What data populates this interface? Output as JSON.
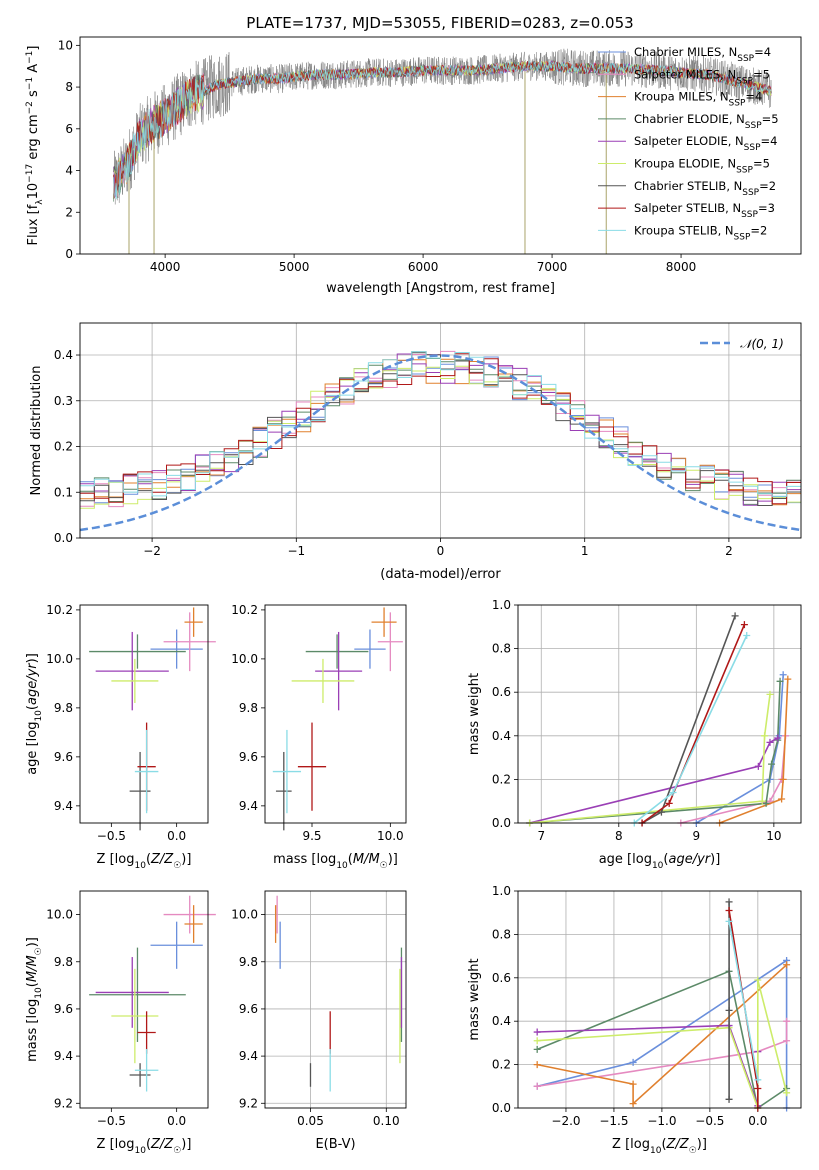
{
  "figure_title": "PLATE=1737, MJD=53055, FIBERID=0283, z=0.053",
  "colors": {
    "Chabrier MILES": "#6a8fdc",
    "Salpeter MILES": "#e58ac0",
    "Kroupa MILES": "#e0802e",
    "Chabrier ELODIE": "#5c8a68",
    "Salpeter ELODIE": "#9a3fb5",
    "Kroupa ELODIE": "#cdec6a",
    "Chabrier STELIB": "#555555",
    "Salpeter STELIB": "#b01818",
    "Kroupa STELIB": "#8adce6",
    "Observed": "#808080",
    "Normal": "#5b8ed8"
  },
  "chart_data": [
    {
      "type": "line",
      "title": "PLATE=1737, MJD=53055, FIBERID=0283, z=0.053",
      "xlabel": "wavelength [Angstrom, rest frame]",
      "ylabel": "Flux [fλ10⁻¹⁷ erg cm⁻² s⁻¹ A⁻¹]",
      "xlim": [
        3340,
        8930
      ],
      "ylim": [
        0,
        10.4
      ],
      "xticks": [
        4000,
        5000,
        6000,
        7000,
        8000
      ],
      "yticks": [
        0,
        2,
        4,
        6,
        8,
        10
      ],
      "legend_position": "top-right",
      "continuum": {
        "x": [
          3600,
          3700,
          3800,
          3900,
          4000,
          4100,
          4200,
          4300,
          4400,
          4500,
          4600,
          4700,
          4800,
          4900,
          5000,
          5200,
          5400,
          5600,
          5800,
          6000,
          6200,
          6400,
          6600,
          6800,
          7000,
          7200,
          7400,
          7600,
          7800,
          8000,
          8200,
          8400,
          8600,
          8700
        ],
        "y": [
          3.3,
          4.2,
          5.6,
          6.2,
          6.6,
          7.1,
          7.6,
          7.8,
          8.1,
          8.2,
          8.3,
          8.4,
          8.4,
          8.4,
          8.5,
          8.6,
          8.6,
          8.7,
          8.7,
          8.8,
          8.8,
          8.8,
          8.9,
          9.0,
          9.0,
          8.9,
          8.9,
          8.9,
          8.8,
          8.7,
          8.6,
          8.3,
          8.0,
          7.8
        ]
      },
      "spikes": [
        {
          "x": 3720,
          "y": 0.0
        },
        {
          "x": 3914,
          "y": 0.0
        },
        {
          "x": 6790,
          "y": 0.0
        },
        {
          "x": 7420,
          "y": 0.0
        }
      ],
      "series": [
        {
          "name": "Chabrier MILES, N_SSP=4"
        },
        {
          "name": "Salpeter MILES, N_SSP=5"
        },
        {
          "name": "Kroupa MILES, N_SSP=4"
        },
        {
          "name": "Chabrier ELODIE, N_SSP=5"
        },
        {
          "name": "Salpeter ELODIE, N_SSP=4"
        },
        {
          "name": "Kroupa ELODIE, N_SSP=5"
        },
        {
          "name": "Chabrier STELIB, N_SSP=2"
        },
        {
          "name": "Salpeter STELIB, N_SSP=3"
        },
        {
          "name": "Kroupa STELIB, N_SSP=2"
        }
      ]
    },
    {
      "type": "histogram",
      "xlabel": "(data-model)/error",
      "ylabel": "Normed distribution",
      "xlim": [
        -2.5,
        2.5
      ],
      "ylim": [
        0,
        0.47
      ],
      "xticks": [
        -2,
        -1,
        0,
        1,
        2
      ],
      "yticks": [
        0.0,
        0.1,
        0.2,
        0.3,
        0.4
      ],
      "grid": true,
      "legend": "𝒩(0, 1)",
      "legend_position": "top-right",
      "bin_width": 0.1,
      "bin_start": -2.5,
      "bins": 50
    },
    {
      "type": "scatter",
      "xlabel": "Z [log10(Z/Z☉)]",
      "ylabel": "age  [log10(age/yr)]",
      "xlim": [
        -0.74,
        0.24
      ],
      "ylim": [
        9.33,
        10.22
      ],
      "xticks": [
        -0.5,
        0.0
      ],
      "yticks": [
        9.4,
        9.6,
        9.8,
        10.0,
        10.2
      ],
      "points": [
        {
          "model": "Chabrier MILES",
          "x": 0.0,
          "y": 10.04,
          "xerr": 0.2,
          "yerr": 0.08
        },
        {
          "model": "Salpeter MILES",
          "x": 0.1,
          "y": 10.07,
          "xerr": 0.2,
          "yerr": 0.12
        },
        {
          "model": "Kroupa MILES",
          "x": 0.13,
          "y": 10.15,
          "xerr": 0.07,
          "yerr": 0.06
        },
        {
          "model": "Chabrier ELODIE",
          "x": -0.3,
          "y": 10.03,
          "xerr": 0.37,
          "yerr": 0.07
        },
        {
          "model": "Salpeter ELODIE",
          "x": -0.34,
          "y": 9.95,
          "xerr": 0.28,
          "yerr": 0.16
        },
        {
          "model": "Kroupa ELODIE",
          "x": -0.32,
          "y": 9.91,
          "xerr": 0.18,
          "yerr": 0.09
        },
        {
          "model": "Chabrier STELIB",
          "x": -0.28,
          "y": 9.46,
          "xerr": 0.08,
          "yerr": 0.16
        },
        {
          "model": "Salpeter STELIB",
          "x": -0.23,
          "y": 9.56,
          "xerr": 0.07,
          "yerr": 0.18
        },
        {
          "model": "Kroupa STELIB",
          "x": -0.23,
          "y": 9.54,
          "xerr": 0.09,
          "yerr": 0.17
        }
      ]
    },
    {
      "type": "scatter",
      "xlabel": "mass [log10(M/M☉)]",
      "ylabel": "",
      "xlim": [
        9.2,
        10.1
      ],
      "ylim": [
        9.33,
        10.22
      ],
      "xticks": [
        9.5,
        10.0
      ],
      "yticks": [
        9.4,
        9.6,
        9.8,
        10.0,
        10.2
      ],
      "points": [
        {
          "model": "Chabrier MILES",
          "x": 9.87,
          "y": 10.04,
          "xerr": 0.1,
          "yerr": 0.08
        },
        {
          "model": "Salpeter MILES",
          "x": 10.0,
          "y": 10.07,
          "xerr": 0.08,
          "yerr": 0.12
        },
        {
          "model": "Kroupa MILES",
          "x": 9.96,
          "y": 10.15,
          "xerr": 0.08,
          "yerr": 0.06
        },
        {
          "model": "Chabrier ELODIE",
          "x": 9.66,
          "y": 10.03,
          "xerr": 0.2,
          "yerr": 0.07
        },
        {
          "model": "Salpeter ELODIE",
          "x": 9.67,
          "y": 9.95,
          "xerr": 0.15,
          "yerr": 0.16
        },
        {
          "model": "Kroupa ELODIE",
          "x": 9.57,
          "y": 9.91,
          "xerr": 0.2,
          "yerr": 0.09
        },
        {
          "model": "Chabrier STELIB",
          "x": 9.32,
          "y": 9.46,
          "xerr": 0.05,
          "yerr": 0.16
        },
        {
          "model": "Salpeter STELIB",
          "x": 9.5,
          "y": 9.56,
          "xerr": 0.09,
          "yerr": 0.18
        },
        {
          "model": "Kroupa STELIB",
          "x": 9.34,
          "y": 9.54,
          "xerr": 0.09,
          "yerr": 0.17
        }
      ]
    },
    {
      "type": "line",
      "xlabel": "age  [log10(age/yr)]",
      "ylabel": "mass weight",
      "xlim": [
        6.7,
        10.35
      ],
      "ylim": [
        0,
        1.0
      ],
      "xticks": [
        7,
        8,
        9,
        10
      ],
      "yticks": [
        0.0,
        0.2,
        0.4,
        0.6,
        0.8,
        1.0
      ],
      "grid": true,
      "series": [
        {
          "model": "Chabrier MILES",
          "x": [
            9.0,
            9.95,
            10.07,
            10.12
          ],
          "y": [
            0.0,
            0.2,
            0.4,
            0.68
          ]
        },
        {
          "model": "Salpeter MILES",
          "x": [
            8.8,
            9.95,
            10.1,
            10.15
          ],
          "y": [
            0.0,
            0.1,
            0.2,
            0.4
          ]
        },
        {
          "model": "Kroupa MILES",
          "x": [
            9.3,
            10.1,
            10.12,
            10.18
          ],
          "y": [
            0.0,
            0.11,
            0.2,
            0.66
          ]
        },
        {
          "model": "Chabrier ELODIE",
          "x": [
            6.85,
            9.9,
            9.97,
            10.05,
            10.08
          ],
          "y": [
            0.0,
            0.09,
            0.27,
            0.38,
            0.65
          ]
        },
        {
          "model": "Salpeter ELODIE",
          "x": [
            6.85,
            9.8,
            9.95,
            10.05
          ],
          "y": [
            0.0,
            0.26,
            0.37,
            0.39
          ]
        },
        {
          "model": "Kroupa ELODIE",
          "x": [
            6.85,
            9.85,
            9.88,
            9.95
          ],
          "y": [
            0.0,
            0.1,
            0.4,
            0.59
          ]
        },
        {
          "model": "Chabrier STELIB",
          "x": [
            8.3,
            8.55,
            9.5
          ],
          "y": [
            0.0,
            0.05,
            0.95
          ]
        },
        {
          "model": "Salpeter STELIB",
          "x": [
            8.3,
            8.65,
            9.62
          ],
          "y": [
            0.0,
            0.09,
            0.91
          ]
        },
        {
          "model": "Kroupa STELIB",
          "x": [
            8.2,
            8.7,
            9.65
          ],
          "y": [
            0.0,
            0.14,
            0.86
          ]
        }
      ]
    },
    {
      "type": "scatter",
      "xlabel": "Z [log10(Z/Z☉)]",
      "ylabel": "mass [log10(M/M☉)]",
      "xlim": [
        -0.74,
        0.24
      ],
      "ylim": [
        9.18,
        10.1
      ],
      "xticks": [
        -0.5,
        0.0
      ],
      "yticks": [
        9.2,
        9.4,
        9.6,
        9.8,
        10.0
      ],
      "points": [
        {
          "model": "Chabrier MILES",
          "x": 0.0,
          "y": 9.87,
          "xerr": 0.2,
          "yerr": 0.1
        },
        {
          "model": "Salpeter MILES",
          "x": 0.1,
          "y": 10.0,
          "xerr": 0.2,
          "yerr": 0.08
        },
        {
          "model": "Kroupa MILES",
          "x": 0.13,
          "y": 9.96,
          "xerr": 0.07,
          "yerr": 0.08
        },
        {
          "model": "Chabrier ELODIE",
          "x": -0.3,
          "y": 9.66,
          "xerr": 0.37,
          "yerr": 0.2
        },
        {
          "model": "Salpeter ELODIE",
          "x": -0.34,
          "y": 9.67,
          "xerr": 0.28,
          "yerr": 0.15
        },
        {
          "model": "Kroupa ELODIE",
          "x": -0.32,
          "y": 9.57,
          "xerr": 0.18,
          "yerr": 0.2
        },
        {
          "model": "Chabrier STELIB",
          "x": -0.28,
          "y": 9.32,
          "xerr": 0.08,
          "yerr": 0.05
        },
        {
          "model": "Salpeter STELIB",
          "x": -0.23,
          "y": 9.5,
          "xerr": 0.07,
          "yerr": 0.09
        },
        {
          "model": "Kroupa STELIB",
          "x": -0.23,
          "y": 9.34,
          "xerr": 0.09,
          "yerr": 0.09
        }
      ]
    },
    {
      "type": "scatter",
      "xlabel": "E(B-V)",
      "ylabel": "",
      "xlim": [
        0.02,
        0.113
      ],
      "ylim": [
        9.18,
        10.1
      ],
      "xticks": [
        0.05,
        0.1
      ],
      "yticks": [
        9.2,
        9.4,
        9.6,
        9.8,
        10.0
      ],
      "grid": true,
      "points": [
        {
          "model": "Chabrier MILES",
          "x": 0.03,
          "y": 9.87,
          "yerr": 0.1
        },
        {
          "model": "Salpeter MILES",
          "x": 0.028,
          "y": 10.0,
          "yerr": 0.08
        },
        {
          "model": "Kroupa MILES",
          "x": 0.027,
          "y": 9.96,
          "yerr": 0.08
        },
        {
          "model": "Chabrier ELODIE",
          "x": 0.11,
          "y": 9.66,
          "yerr": 0.2
        },
        {
          "model": "Salpeter ELODIE",
          "x": 0.11,
          "y": 9.67,
          "yerr": 0.15
        },
        {
          "model": "Kroupa ELODIE",
          "x": 0.109,
          "y": 9.57,
          "yerr": 0.2
        },
        {
          "model": "Chabrier STELIB",
          "x": 0.05,
          "y": 9.32,
          "yerr": 0.05
        },
        {
          "model": "Salpeter STELIB",
          "x": 0.063,
          "y": 9.5,
          "yerr": 0.09
        },
        {
          "model": "Kroupa STELIB",
          "x": 0.063,
          "y": 9.34,
          "yerr": 0.09
        }
      ]
    },
    {
      "type": "line",
      "xlabel": "Z [log10(Z/Z☉)]",
      "ylabel": "mass weight",
      "xlim": [
        -2.5,
        0.45
      ],
      "ylim": [
        0,
        1.0
      ],
      "xticks": [
        -2.0,
        -1.5,
        -1.0,
        -0.5,
        0.0
      ],
      "yticks": [
        0.0,
        0.2,
        0.4,
        0.6,
        0.8,
        1.0
      ],
      "grid": true,
      "series": [
        {
          "model": "Chabrier MILES",
          "x": [
            -2.3,
            -1.3,
            0.3,
            0.3
          ],
          "y": [
            0.1,
            0.21,
            0.68,
            0.0
          ]
        },
        {
          "model": "Salpeter MILES",
          "x": [
            -2.3,
            0.0,
            0.3,
            0.3
          ],
          "y": [
            0.1,
            0.26,
            0.31,
            0.4
          ]
        },
        {
          "model": "Kroupa MILES",
          "x": [
            -2.3,
            -1.3,
            -1.3,
            0.3
          ],
          "y": [
            0.2,
            0.11,
            0.02,
            0.66
          ]
        },
        {
          "model": "Chabrier ELODIE",
          "x": [
            -2.3,
            -0.3,
            0.0,
            0.3
          ],
          "y": [
            0.27,
            0.63,
            0.0,
            0.09
          ]
        },
        {
          "model": "Salpeter ELODIE",
          "x": [
            -2.3,
            -0.3,
            0.0,
            0.0
          ],
          "y": [
            0.35,
            0.38,
            0.01,
            0.26
          ]
        },
        {
          "model": "Kroupa ELODIE",
          "x": [
            -2.3,
            -0.3,
            0.0,
            0.0,
            0.3
          ],
          "y": [
            0.31,
            0.37,
            0.0,
            0.59,
            0.07
          ]
        },
        {
          "model": "Chabrier STELIB",
          "x": [
            -0.3,
            -0.3,
            -0.3
          ],
          "y": [
            0.95,
            0.45,
            0.04
          ]
        },
        {
          "model": "Salpeter STELIB",
          "x": [
            -0.3,
            0.0,
            0.0
          ],
          "y": [
            0.91,
            0.09,
            0.0
          ]
        },
        {
          "model": "Kroupa STELIB",
          "x": [
            -0.3,
            0.0
          ],
          "y": [
            0.86,
            0.13
          ]
        }
      ]
    }
  ]
}
